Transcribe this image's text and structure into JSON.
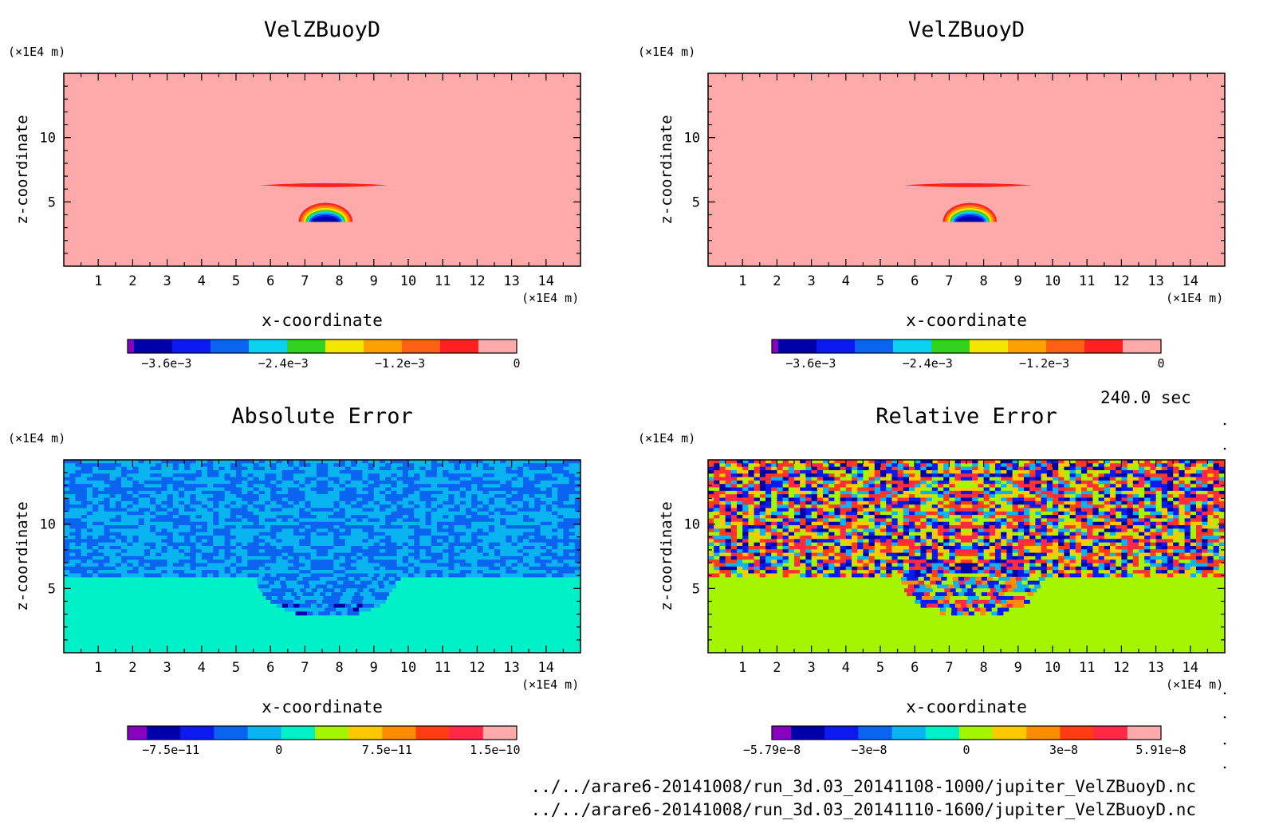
{
  "time_label": "240.0 sec",
  "files": [
    "../../arare6-20141008/run_3d.03_20141108-1000/jupiter_VelZBuoyD.nc",
    "../../arare6-20141008/run_3d.03_20141110-1600/jupiter_VelZBuoyD.nc"
  ],
  "colors": {
    "velz_palette": [
      "#8a00bf",
      "#0000a8",
      "#0a1af0",
      "#0a64f0",
      "#0ad2f0",
      "#32d21e",
      "#f5e600",
      "#ffa000",
      "#ff6014",
      "#ff2020",
      "#ffaaaa"
    ],
    "err_palette": [
      "#8a00bf",
      "#0000a8",
      "#0a1af0",
      "#0a64f0",
      "#0ab4f0",
      "#00f0c8",
      "#a5f500",
      "#ffc800",
      "#ff8c00",
      "#ff3c14",
      "#ff2846",
      "#ffaaaa"
    ]
  },
  "chart_data": [
    {
      "type": "heatmap",
      "title": "VelZBuoyD",
      "xlabel": "x-coordinate",
      "ylabel": "z-coordinate",
      "x_unit": "(×1E4 m)",
      "y_unit": "(×1E4 m)",
      "xlim": [
        0,
        15
      ],
      "ylim": [
        0,
        15
      ],
      "x_ticks": [
        1,
        2,
        3,
        4,
        5,
        6,
        7,
        8,
        9,
        10,
        11,
        12,
        13,
        14
      ],
      "y_ticks": [
        5,
        10
      ],
      "background_value": 0,
      "features": [
        {
          "kind": "bubble",
          "center_x": 7.6,
          "center_z": 4.0,
          "min_value": -0.004
        },
        {
          "kind": "band",
          "x_from": 5.7,
          "x_to": 9.4,
          "z": 6.3
        }
      ],
      "colorbar": {
        "ticks": [
          "−3.6e−3",
          "−2.4e−3",
          "−1.2e−3",
          "0"
        ],
        "range": [
          -0.004,
          0
        ]
      }
    },
    {
      "type": "heatmap",
      "title": "VelZBuoyD",
      "xlabel": "x-coordinate",
      "ylabel": "z-coordinate",
      "x_unit": "(×1E4 m)",
      "y_unit": "(×1E4 m)",
      "xlim": [
        0,
        15
      ],
      "ylim": [
        0,
        15
      ],
      "x_ticks": [
        1,
        2,
        3,
        4,
        5,
        6,
        7,
        8,
        9,
        10,
        11,
        12,
        13,
        14
      ],
      "y_ticks": [
        5,
        10
      ],
      "background_value": 0,
      "features": [
        {
          "kind": "bubble",
          "center_x": 7.6,
          "center_z": 4.0,
          "min_value": -0.004
        },
        {
          "kind": "band",
          "x_from": 5.7,
          "x_to": 9.4,
          "z": 6.3
        }
      ],
      "colorbar": {
        "ticks": [
          "−3.6e−3",
          "−2.4e−3",
          "−1.2e−3",
          "0"
        ],
        "range": [
          -0.004,
          0
        ]
      }
    },
    {
      "type": "heatmap",
      "title": "Absolute Error",
      "xlabel": "x-coordinate",
      "ylabel": "z-coordinate",
      "x_unit": "(×1E4 m)",
      "y_unit": "(×1E4 m)",
      "xlim": [
        0,
        15
      ],
      "ylim": [
        0,
        15
      ],
      "x_ticks": [
        1,
        2,
        3,
        4,
        5,
        6,
        7,
        8,
        9,
        10,
        11,
        12,
        13,
        14
      ],
      "y_ticks": [
        5,
        10
      ],
      "noise_above_z": 5.9,
      "colorbar": {
        "ticks": [
          "−7.5e−11",
          "0",
          "7.5e−11",
          "1.5e−10"
        ],
        "range": [
          -1.05e-10,
          1.65e-10
        ]
      }
    },
    {
      "type": "heatmap",
      "title": "Relative Error",
      "xlabel": "x-coordinate",
      "ylabel": "z-coordinate",
      "x_unit": "(×1E4 m)",
      "y_unit": "(×1E4 m)",
      "xlim": [
        0,
        15
      ],
      "ylim": [
        0,
        15
      ],
      "x_ticks": [
        1,
        2,
        3,
        4,
        5,
        6,
        7,
        8,
        9,
        10,
        11,
        12,
        13,
        14
      ],
      "y_ticks": [
        5,
        10
      ],
      "noise_above_z": 5.9,
      "colorbar": {
        "ticks": [
          "−5.79e−8",
          "−3e−8",
          "0",
          "3e−8",
          "5.91e−8"
        ],
        "range": [
          -5.79e-08,
          5.91e-08
        ]
      }
    }
  ]
}
